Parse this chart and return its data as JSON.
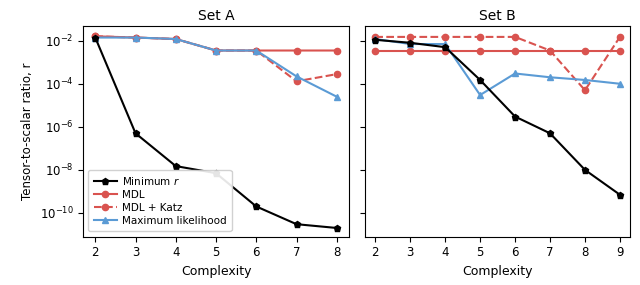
{
  "set_A": {
    "title": "Set A",
    "xlim": [
      1.7,
      8.3
    ],
    "x_ticks": [
      2,
      3,
      4,
      5,
      6,
      7,
      8
    ],
    "min_r": {
      "x": [
        2,
        3,
        4,
        5,
        6,
        7,
        8
      ],
      "y": [
        0.014,
        5e-07,
        1.5e-08,
        7e-09,
        2e-10,
        3e-11,
        2e-11
      ]
    },
    "mdl": {
      "x": [
        2,
        3,
        4,
        5,
        6,
        7,
        8
      ],
      "y": [
        0.016,
        0.014,
        0.012,
        0.0035,
        0.0035,
        0.0035,
        0.0035
      ]
    },
    "mdl_katz": {
      "x": [
        2,
        3,
        4,
        5,
        6,
        7,
        8
      ],
      "y": [
        0.016,
        0.014,
        0.012,
        0.0035,
        0.0035,
        0.00013,
        0.00028
      ]
    },
    "max_like": {
      "x": [
        2,
        3,
        4,
        5,
        6,
        7,
        8
      ],
      "y": [
        0.014,
        0.014,
        0.012,
        0.0035,
        0.0035,
        0.00022,
        2.5e-05
      ]
    }
  },
  "set_B": {
    "title": "Set B",
    "xlim": [
      1.7,
      9.3
    ],
    "x_ticks": [
      2,
      3,
      4,
      5,
      6,
      7,
      8,
      9
    ],
    "min_r": {
      "x": [
        2,
        3,
        4,
        5,
        6,
        7,
        8,
        9
      ],
      "y": [
        0.011,
        0.008,
        0.005,
        0.00015,
        3e-06,
        5e-07,
        1e-08,
        7e-10
      ]
    },
    "mdl": {
      "x": [
        2,
        3,
        4,
        5,
        6,
        7,
        8,
        9
      ],
      "y": [
        0.0035,
        0.0035,
        0.0035,
        0.0035,
        0.0035,
        0.0035,
        0.0035,
        0.0035
      ]
    },
    "mdl_katz": {
      "x": [
        2,
        3,
        4,
        5,
        6,
        7,
        8,
        9
      ],
      "y": [
        0.015,
        0.015,
        0.015,
        0.015,
        0.015,
        0.0035,
        5e-05,
        0.015
      ]
    },
    "max_like": {
      "x": [
        2,
        3,
        4,
        5,
        6,
        7,
        8,
        9
      ],
      "y": [
        0.012,
        0.007,
        0.007,
        3e-05,
        0.0003,
        0.0002,
        0.00015,
        0.0001
      ]
    }
  },
  "ylim": [
    8e-12,
    0.05
  ],
  "yticks": [
    1e-10,
    1e-08,
    1e-06,
    0.0001,
    0.01
  ],
  "colors": {
    "min_r": "#000000",
    "mdl": "#d9534f",
    "mdl_katz": "#d9534f",
    "max_like": "#5b9bd5"
  },
  "ylabel": "Tensor-to-scalar ratio, r",
  "xlabel": "Complexity",
  "legend_labels": [
    "Minimum $r$",
    "MDL",
    "MDL + Katz",
    "Maximum likelihood"
  ]
}
